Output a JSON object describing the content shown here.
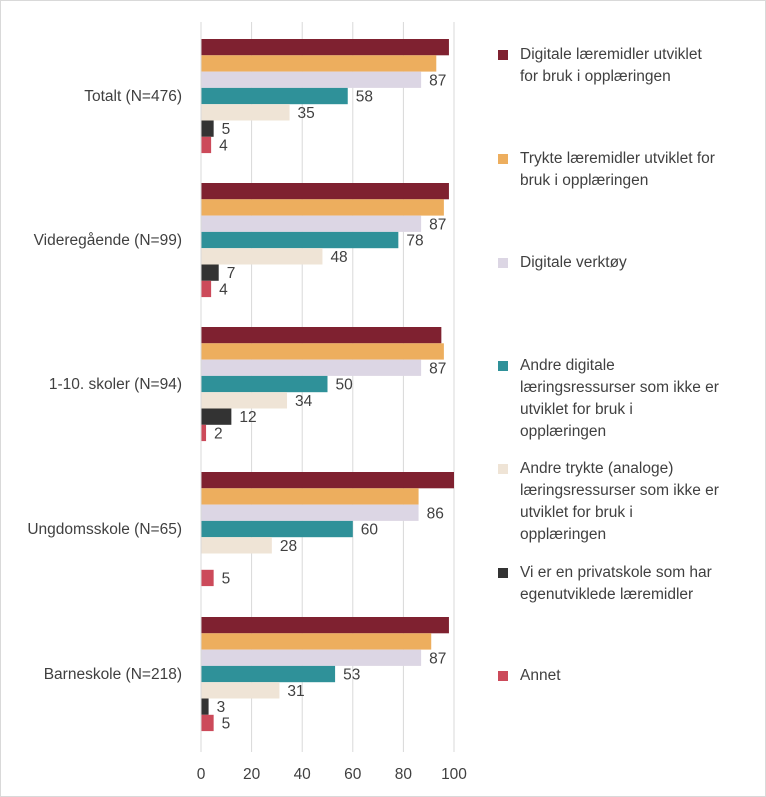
{
  "chart_data": {
    "type": "bar",
    "orientation": "horizontal",
    "categories": [
      "Totalt (N=476)",
      "Videregående (N=99)",
      "1-10. skoler (N=94)",
      "Ungdomsskole (N=65)",
      "Barneskole (N=218)"
    ],
    "series": [
      {
        "name": "Digitale læremidler utviklet for bruk i opplæringen",
        "color": "#7f2130",
        "values": [
          98,
          98,
          95,
          100,
          98
        ],
        "labels": [
          "",
          "",
          "",
          "",
          ""
        ]
      },
      {
        "name": "Trykte læremidler utviklet for bruk i opplæringen",
        "color": "#edae5e",
        "values": [
          93,
          96,
          96,
          86,
          91
        ],
        "labels": [
          "",
          "",
          "",
          "",
          ""
        ]
      },
      {
        "name": "Digitale verktøy",
        "color": "#dcd6e4",
        "values": [
          87,
          87,
          87,
          86,
          87
        ],
        "labels": [
          "87",
          "87",
          "87",
          "86",
          "87"
        ]
      },
      {
        "name": "Andre digitale læringsressurser som ikke er utviklet for bruk i opplæringen",
        "color": "#2f9199",
        "values": [
          58,
          78,
          50,
          60,
          53
        ],
        "labels": [
          "58",
          "78",
          "50",
          "60",
          "53"
        ]
      },
      {
        "name": "Andre trykte (analoge) læringsressurser som ikke er utviklet for bruk i opplæringen",
        "color": "#efe4d6",
        "values": [
          35,
          48,
          34,
          28,
          31
        ],
        "labels": [
          "35",
          "48",
          "34",
          "28",
          "31"
        ]
      },
      {
        "name": "Vi er en privatskole som har egenutviklede læremidler",
        "color": "#333333",
        "values": [
          5,
          7,
          12,
          null,
          3
        ],
        "labels": [
          "5",
          "7",
          "12",
          "",
          "3"
        ]
      },
      {
        "name": "Annet",
        "color": "#cc4a5a",
        "values": [
          4,
          4,
          2,
          5,
          5
        ],
        "labels": [
          "4",
          "4",
          "2",
          "5",
          "5"
        ]
      }
    ],
    "x_ticks": [
      "0",
      "20",
      "40",
      "60",
      "80",
      "100"
    ],
    "xlim": [
      0,
      100
    ],
    "grid": "vertical",
    "legend_position": "right"
  },
  "legend": [
    {
      "lines": [
        "Digitale læremidler utviklet",
        "for bruk i opplæringen"
      ]
    },
    {
      "lines": [
        "Trykte læremidler utviklet for",
        "bruk i opplæringen"
      ]
    },
    {
      "lines": [
        "Digitale verktøy"
      ]
    },
    {
      "lines": [
        "Andre digitale",
        "læringsressurser som ikke er",
        "utviklet for bruk i",
        "opplæringen"
      ]
    },
    {
      "lines": [
        "Andre trykte (analoge)",
        "læringsressurser som ikke er",
        "utviklet for bruk i",
        "opplæringen"
      ]
    },
    {
      "lines": [
        "Vi er en privatskole som har",
        "egenutviklede læremidler"
      ]
    },
    {
      "lines": [
        "Annet"
      ]
    }
  ]
}
